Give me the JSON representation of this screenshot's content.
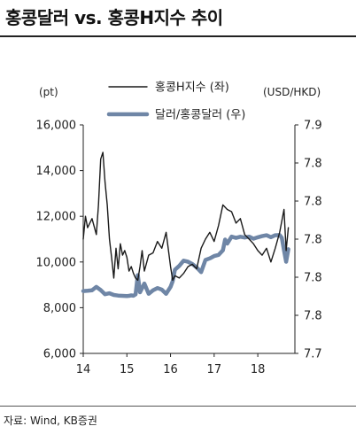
{
  "title": "홍콩달러 vs. 홍콩H지수 추이",
  "source": "자료: Wind, KB증권",
  "colors": {
    "hscei": "#1a1a1a",
    "usdhkd": "#6f86a6"
  },
  "chart_data": {
    "type": "line",
    "title": "홍콩달러 vs. 홍콩H지수 추이",
    "left_axis_unit": "(pt)",
    "right_axis_unit": "(USD/HKD)",
    "ylim_left": [
      6000,
      16000
    ],
    "ylim_right": [
      7.7,
      7.9
    ],
    "xlim": [
      14.0,
      18.85
    ],
    "yticks_left": [
      "16,000",
      "14,000",
      "12,000",
      "10,000",
      "8,000",
      "6,000"
    ],
    "yticks_right": [
      "7.9",
      "7.8",
      "7.8",
      "7.8",
      "7.8",
      "7.8",
      "7.7"
    ],
    "xticks": [
      "14",
      "15",
      "16",
      "17",
      "18"
    ],
    "grid": false,
    "legend_position": "top-center",
    "series": [
      {
        "name": "홍콩H지수 (좌)",
        "axis": "left",
        "x": [
          14.0,
          14.05,
          14.1,
          14.2,
          14.3,
          14.35,
          14.4,
          14.45,
          14.5,
          14.55,
          14.6,
          14.65,
          14.7,
          14.75,
          14.8,
          14.85,
          14.9,
          14.95,
          15.0,
          15.05,
          15.1,
          15.15,
          15.2,
          15.25,
          15.3,
          15.35,
          15.4,
          15.5,
          15.6,
          15.7,
          15.8,
          15.9,
          16.0,
          16.05,
          16.1,
          16.2,
          16.3,
          16.4,
          16.5,
          16.6,
          16.7,
          16.8,
          16.9,
          17.0,
          17.1,
          17.2,
          17.3,
          17.4,
          17.5,
          17.6,
          17.7,
          17.8,
          17.9,
          18.0,
          18.1,
          18.2,
          18.3,
          18.4,
          18.5,
          18.6,
          18.65,
          18.7
        ],
        "values": [
          11000,
          12000,
          11500,
          11900,
          11200,
          12500,
          14500,
          14800,
          13500,
          12500,
          11000,
          10200,
          9300,
          10600,
          9700,
          10800,
          10300,
          10500,
          10200,
          9600,
          9800,
          9500,
          9300,
          9200,
          9800,
          10500,
          9600,
          10300,
          10400,
          10900,
          10600,
          11300,
          9800,
          9200,
          9400,
          9300,
          9500,
          9800,
          9900,
          9700,
          10600,
          11000,
          11300,
          10900,
          11600,
          12500,
          12300,
          12200,
          11700,
          11900,
          11200,
          11000,
          10800,
          10500,
          10300,
          10600,
          10000,
          10600,
          11300,
          12300,
          10500,
          11500
        ]
      },
      {
        "name": "달러/홍콩달러 (우)",
        "axis": "right",
        "x": [
          14.0,
          14.1,
          14.2,
          14.3,
          14.4,
          14.5,
          14.6,
          14.7,
          14.8,
          14.9,
          15.0,
          15.05,
          15.1,
          15.15,
          15.2,
          15.25,
          15.3,
          15.4,
          15.5,
          15.6,
          15.7,
          15.8,
          15.9,
          16.0,
          16.05,
          16.1,
          16.2,
          16.3,
          16.4,
          16.5,
          16.6,
          16.7,
          16.8,
          16.9,
          17.0,
          17.1,
          17.2,
          17.25,
          17.3,
          17.4,
          17.5,
          17.6,
          17.7,
          17.8,
          17.9,
          18.0,
          18.1,
          18.2,
          18.3,
          18.4,
          18.5,
          18.55,
          18.6,
          18.65,
          18.7
        ],
        "values": [
          7.7546,
          7.7548,
          7.7552,
          7.7582,
          7.7554,
          7.7518,
          7.7526,
          7.7512,
          7.7506,
          7.7504,
          7.7502,
          7.7504,
          7.7508,
          7.7505,
          7.7516,
          7.7685,
          7.7535,
          7.7612,
          7.7522,
          7.7552,
          7.7572,
          7.7558,
          7.7522,
          7.7582,
          7.7632,
          7.7732,
          7.7766,
          7.7812,
          7.7802,
          7.7782,
          7.7752,
          7.7712,
          7.7818,
          7.7832,
          7.7852,
          7.7862,
          7.7902,
          7.7996,
          7.7961,
          7.8022,
          7.8011,
          7.8021,
          7.8014,
          7.8022,
          7.8004,
          7.8016,
          7.8026,
          7.8034,
          7.8017,
          7.8034,
          7.8036,
          7.8012,
          7.7902,
          7.7802,
          7.7912
        ]
      }
    ]
  }
}
